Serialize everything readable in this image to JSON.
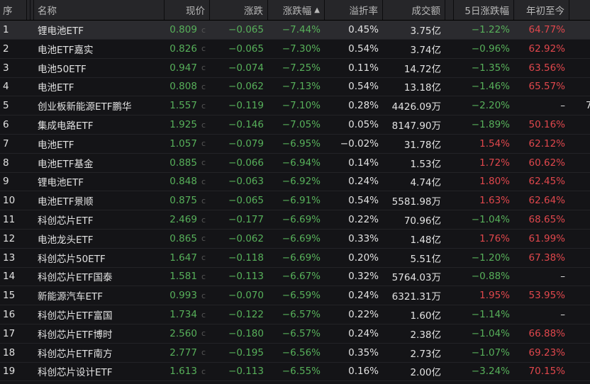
{
  "header": {
    "seq": "序",
    "name": "名称",
    "price": "现价",
    "change": "涨跌",
    "change_pct": "涨跌幅",
    "sort_icon": "▲",
    "premium": "溢折率",
    "volume": "成交额",
    "five_day": "5日涨跌幅",
    "ytd": "年初至今"
  },
  "colors": {
    "up": "#e0474c",
    "down": "#57b05a",
    "background": "#141417"
  },
  "rows": [
    {
      "seq": "1",
      "name": "锂电池ETF",
      "price": "0.809",
      "flag": "c",
      "change": "−0.065",
      "pct": "−7.44%",
      "premium": "0.45%",
      "volume": "3.75亿",
      "five": "−1.22%",
      "five_dir": "down",
      "ytd": "64.77%",
      "ytd_dir": "up"
    },
    {
      "seq": "2",
      "name": "电池ETF嘉实",
      "price": "0.826",
      "flag": "c",
      "change": "−0.065",
      "pct": "−7.30%",
      "premium": "0.54%",
      "volume": "3.74亿",
      "five": "−0.96%",
      "five_dir": "down",
      "ytd": "62.92%",
      "ytd_dir": "up"
    },
    {
      "seq": "3",
      "name": "电池50ETF",
      "price": "0.947",
      "flag": "c",
      "change": "−0.074",
      "pct": "−7.25%",
      "premium": "0.11%",
      "volume": "14.72亿",
      "five": "−1.35%",
      "five_dir": "down",
      "ytd": "63.56%",
      "ytd_dir": "up"
    },
    {
      "seq": "4",
      "name": "电池ETF",
      "price": "0.808",
      "flag": "c",
      "change": "−0.062",
      "pct": "−7.13%",
      "premium": "0.54%",
      "volume": "13.18亿",
      "five": "−1.46%",
      "five_dir": "down",
      "ytd": "65.57%",
      "ytd_dir": "up"
    },
    {
      "seq": "5",
      "name": "创业板新能源ETF鹏华",
      "price": "1.557",
      "flag": "c",
      "change": "−0.119",
      "pct": "−7.10%",
      "premium": "0.28%",
      "volume": "4426.09万",
      "five": "−2.20%",
      "five_dir": "down",
      "ytd": "–",
      "ytd_dir": "flat",
      "extra": "7"
    },
    {
      "seq": "6",
      "name": "集成电路ETF",
      "price": "1.925",
      "flag": "c",
      "change": "−0.146",
      "pct": "−7.05%",
      "premium": "0.05%",
      "volume": "8147.90万",
      "five": "−1.89%",
      "five_dir": "down",
      "ytd": "50.16%",
      "ytd_dir": "up"
    },
    {
      "seq": "7",
      "name": "电池ETF",
      "price": "1.057",
      "flag": "c",
      "change": "−0.079",
      "pct": "−6.95%",
      "premium": "−0.02%",
      "volume": "31.78亿",
      "five": "1.54%",
      "five_dir": "up",
      "ytd": "62.12%",
      "ytd_dir": "up"
    },
    {
      "seq": "8",
      "name": "电池ETF基金",
      "price": "0.885",
      "flag": "c",
      "change": "−0.066",
      "pct": "−6.94%",
      "premium": "0.14%",
      "volume": "1.53亿",
      "five": "1.72%",
      "five_dir": "up",
      "ytd": "60.62%",
      "ytd_dir": "up"
    },
    {
      "seq": "9",
      "name": "锂电池ETF",
      "price": "0.848",
      "flag": "c",
      "change": "−0.063",
      "pct": "−6.92%",
      "premium": "0.24%",
      "volume": "4.74亿",
      "five": "1.80%",
      "five_dir": "up",
      "ytd": "62.45%",
      "ytd_dir": "up"
    },
    {
      "seq": "10",
      "name": "电池ETF景顺",
      "price": "0.875",
      "flag": "c",
      "change": "−0.065",
      "pct": "−6.91%",
      "premium": "0.54%",
      "volume": "5581.98万",
      "five": "1.63%",
      "five_dir": "up",
      "ytd": "62.64%",
      "ytd_dir": "up"
    },
    {
      "seq": "11",
      "name": "科创芯片ETF",
      "price": "2.469",
      "flag": "c",
      "change": "−0.177",
      "pct": "−6.69%",
      "premium": "0.22%",
      "volume": "70.96亿",
      "five": "−1.04%",
      "five_dir": "down",
      "ytd": "68.65%",
      "ytd_dir": "up"
    },
    {
      "seq": "12",
      "name": "电池龙头ETF",
      "price": "0.865",
      "flag": "c",
      "change": "−0.062",
      "pct": "−6.69%",
      "premium": "0.33%",
      "volume": "1.48亿",
      "five": "1.76%",
      "five_dir": "up",
      "ytd": "61.99%",
      "ytd_dir": "up"
    },
    {
      "seq": "13",
      "name": "科创芯片50ETF",
      "price": "1.647",
      "flag": "c",
      "change": "−0.118",
      "pct": "−6.69%",
      "premium": "0.20%",
      "volume": "5.51亿",
      "five": "−1.20%",
      "five_dir": "down",
      "ytd": "67.38%",
      "ytd_dir": "up"
    },
    {
      "seq": "14",
      "name": "科创芯片ETF国泰",
      "price": "1.581",
      "flag": "c",
      "change": "−0.113",
      "pct": "−6.67%",
      "premium": "0.32%",
      "volume": "5764.03万",
      "five": "−0.88%",
      "five_dir": "down",
      "ytd": "–",
      "ytd_dir": "flat"
    },
    {
      "seq": "15",
      "name": "新能源汽车ETF",
      "price": "0.993",
      "flag": "c",
      "change": "−0.070",
      "pct": "−6.59%",
      "premium": "0.24%",
      "volume": "6321.31万",
      "five": "1.95%",
      "five_dir": "up",
      "ytd": "53.95%",
      "ytd_dir": "up"
    },
    {
      "seq": "16",
      "name": "科创芯片ETF富国",
      "price": "1.734",
      "flag": "c",
      "change": "−0.122",
      "pct": "−6.57%",
      "premium": "0.22%",
      "volume": "1.60亿",
      "five": "−1.14%",
      "five_dir": "down",
      "ytd": "–",
      "ytd_dir": "flat"
    },
    {
      "seq": "17",
      "name": "科创芯片ETF博时",
      "price": "2.560",
      "flag": "c",
      "change": "−0.180",
      "pct": "−6.57%",
      "premium": "0.24%",
      "volume": "2.38亿",
      "five": "−1.04%",
      "five_dir": "down",
      "ytd": "66.88%",
      "ytd_dir": "up"
    },
    {
      "seq": "18",
      "name": "科创芯片ETF南方",
      "price": "2.777",
      "flag": "c",
      "change": "−0.195",
      "pct": "−6.56%",
      "premium": "0.35%",
      "volume": "2.73亿",
      "five": "−1.07%",
      "five_dir": "down",
      "ytd": "69.23%",
      "ytd_dir": "up"
    },
    {
      "seq": "19",
      "name": "科创芯片设计ETF",
      "price": "1.613",
      "flag": "c",
      "change": "−0.113",
      "pct": "−6.55%",
      "premium": "0.16%",
      "volume": "2.00亿",
      "five": "−3.24%",
      "five_dir": "down",
      "ytd": "70.15%",
      "ytd_dir": "up"
    }
  ]
}
